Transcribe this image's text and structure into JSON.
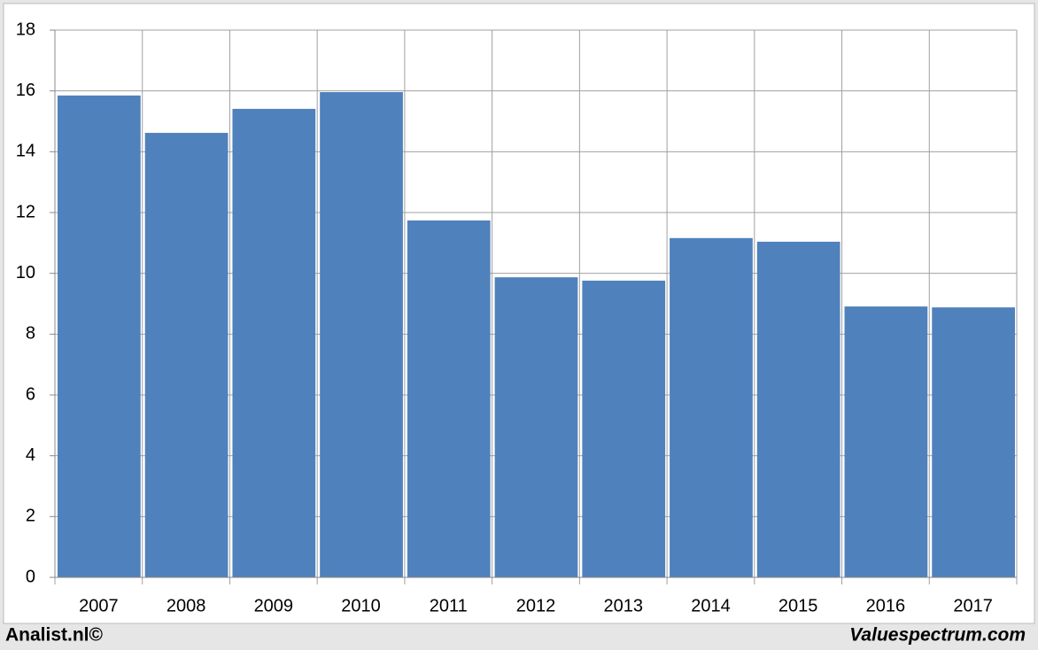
{
  "chart_data": {
    "type": "bar",
    "categories": [
      "2007",
      "2008",
      "2009",
      "2010",
      "2011",
      "2012",
      "2013",
      "2014",
      "2015",
      "2016",
      "2017"
    ],
    "values": [
      15.85,
      14.62,
      15.41,
      15.96,
      11.74,
      9.87,
      9.76,
      11.16,
      11.04,
      8.91,
      8.88
    ],
    "color": "#4f81bd",
    "ylim": [
      0,
      18
    ],
    "yticks": [
      0,
      2,
      4,
      6,
      8,
      10,
      12,
      14,
      16,
      18
    ],
    "grid": true
  },
  "footer": {
    "left": "Analist.nl©",
    "right": "Valuespectrum.com"
  }
}
